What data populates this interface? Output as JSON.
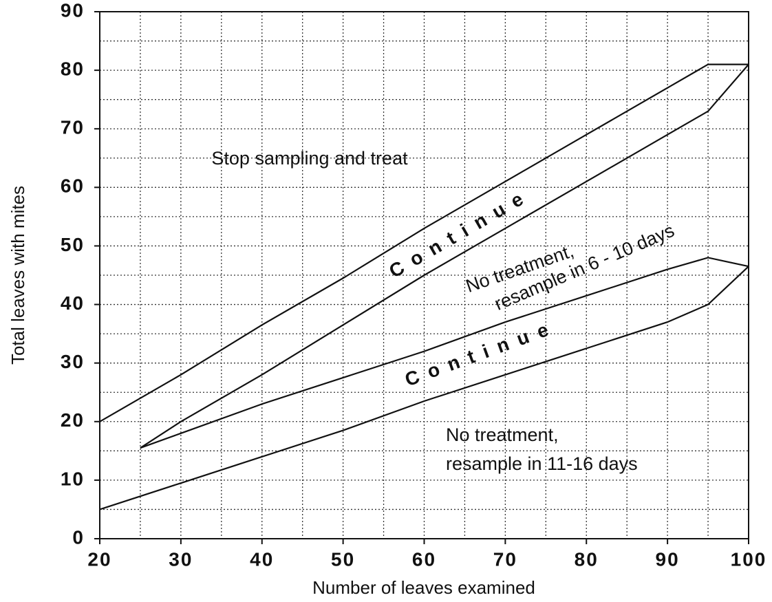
{
  "chart_data": {
    "type": "line",
    "xlabel": "Number of leaves examined",
    "ylabel": "Total leaves with mites",
    "xlim": [
      20,
      100
    ],
    "ylim": [
      0,
      90
    ],
    "xticks": [
      20,
      30,
      40,
      50,
      60,
      70,
      80,
      90,
      100
    ],
    "yticks": [
      0,
      10,
      20,
      30,
      40,
      50,
      60,
      70,
      80,
      90
    ],
    "minor_xticks": [
      25,
      35,
      45,
      55,
      65,
      75,
      85,
      95
    ],
    "minor_yticks": [
      5,
      15,
      25,
      35,
      45,
      55,
      65,
      75,
      85
    ],
    "grid": true,
    "series": [
      {
        "color": "#111111",
        "x": [
          20,
          30,
          40,
          50,
          60,
          70,
          80,
          90,
          95,
          100
        ],
        "values": [
          20,
          28,
          36.5,
          44.5,
          53,
          61,
          69,
          77,
          81,
          81
        ]
      },
      {
        "color": "#111111",
        "x": [
          25,
          30,
          40,
          50,
          60,
          70,
          80,
          90,
          95,
          100
        ],
        "values": [
          15.5,
          20,
          28,
          36.5,
          45,
          53,
          61,
          69,
          73,
          81
        ]
      },
      {
        "color": "#111111",
        "x": [
          25,
          30,
          40,
          50,
          60,
          70,
          80,
          90,
          95,
          100
        ],
        "values": [
          15.5,
          18,
          23,
          27.5,
          32,
          37,
          41.5,
          46,
          48,
          46.5
        ]
      },
      {
        "color": "#111111",
        "x": [
          20,
          30,
          40,
          50,
          60,
          70,
          80,
          90,
          95,
          100
        ],
        "values": [
          5,
          9.5,
          14,
          18.5,
          23.5,
          28,
          32.5,
          37,
          40,
          46.5
        ]
      }
    ],
    "annotations": [
      "Stop sampling and treat",
      "Continue",
      "No treatment,",
      "resample in 6 - 10 days",
      "Continue",
      "No treatment,",
      "resample in 11-16 days"
    ]
  }
}
